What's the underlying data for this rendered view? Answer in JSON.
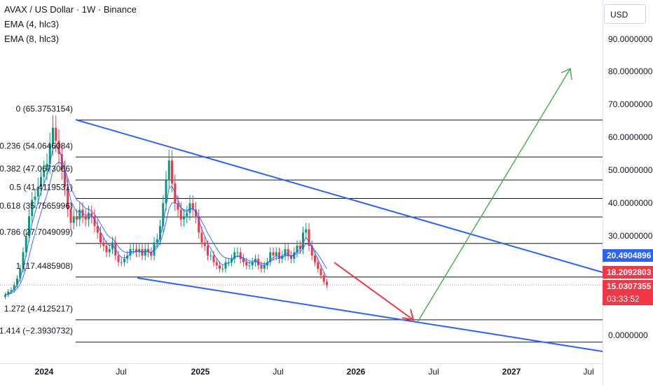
{
  "header": {
    "title": "AVAX / US Dollar · 1W · Binance",
    "ema1": "EMA (4, hlc3)",
    "ema2": "EMA (8, hlc3)"
  },
  "price_axis": {
    "currency": "USD",
    "labels": [
      "90.0000000",
      "80.0000000",
      "70.0000000",
      "60.0000000",
      "50.0000000",
      "40.0000000",
      "30.0000000",
      "0.0000000"
    ]
  },
  "tags": {
    "ema_fast": {
      "text": "20.4904896",
      "color": "#2962ff"
    },
    "ema_slow": {
      "text": "18.2092803",
      "color": "#f23645"
    },
    "price": {
      "text": "15.0307355",
      "color": "#f23645"
    },
    "countdown": {
      "text": "03:33:52",
      "color": "#f23645"
    }
  },
  "time_axis": [
    "2024",
    "Jul",
    "2025",
    "Jul",
    "2026",
    "Jul",
    "2027",
    "Jul"
  ],
  "colors": {
    "up": "#089981",
    "down": "#f23645",
    "ema_fast": "#2962ff",
    "ema_slow": "#2962ff",
    "trend": "#2962ff",
    "fib": "#131722",
    "arrow_down": "#f23645",
    "arrow_up": "#4caf50"
  },
  "chart_data": {
    "type": "candlestick",
    "symbol": "AVAX / US Dollar",
    "timeframe": "1W",
    "exchange": "Binance",
    "fib_levels": [
      {
        "ratio": "0",
        "price": 65.3753154,
        "label": "0 (65.3753154)"
      },
      {
        "ratio": "0.236",
        "price": 54.0646084,
        "label": "0.236 (54.0646084)"
      },
      {
        "ratio": "0.382",
        "price": 47.0673066,
        "label": "0.382 (47.0673066)"
      },
      {
        "ratio": "0.5",
        "price": 41.4119531,
        "label": "0.5 (41.4119531)"
      },
      {
        "ratio": "0.618",
        "price": 35.7565996,
        "label": "0.618 (35.7565996)"
      },
      {
        "ratio": "0.786",
        "price": 27.7049099,
        "label": "0.786 (27.7049099)"
      },
      {
        "ratio": "1",
        "price": 17.4485908,
        "label": "1 (17.4485908)"
      },
      {
        "ratio": "1.272",
        "price": 4.4125217,
        "label": "1.272 (4.4125217)"
      },
      {
        "ratio": "1.414",
        "price": -2.3930732,
        "label": "1.414 (−2.3930732)"
      }
    ],
    "last_price": 15.0307355,
    "ema_4": 20.4904896,
    "ema_8": 18.2092803,
    "closes": [
      12,
      13,
      13.5,
      15,
      17,
      20,
      25,
      30,
      36,
      41,
      42,
      45,
      48,
      50,
      52,
      58,
      63,
      59,
      55,
      50,
      45,
      38,
      34,
      36,
      35,
      38,
      36,
      35,
      37,
      36,
      33,
      31,
      28,
      27,
      25,
      26,
      28,
      24,
      22,
      22,
      23,
      24,
      26,
      26,
      25,
      26,
      24,
      26,
      25,
      24,
      28,
      29,
      33,
      40,
      47,
      53,
      46,
      40,
      38,
      35,
      36,
      37,
      40,
      38,
      36,
      31,
      28,
      27,
      24,
      24,
      22,
      21,
      20,
      20,
      22,
      22,
      23,
      25,
      25,
      23,
      22,
      21,
      21,
      22,
      23,
      21,
      20,
      21,
      22,
      25,
      24,
      25,
      23,
      24,
      26,
      24,
      23,
      25,
      27,
      26,
      31,
      32,
      27,
      24,
      22,
      20,
      18,
      16,
      15
    ]
  }
}
